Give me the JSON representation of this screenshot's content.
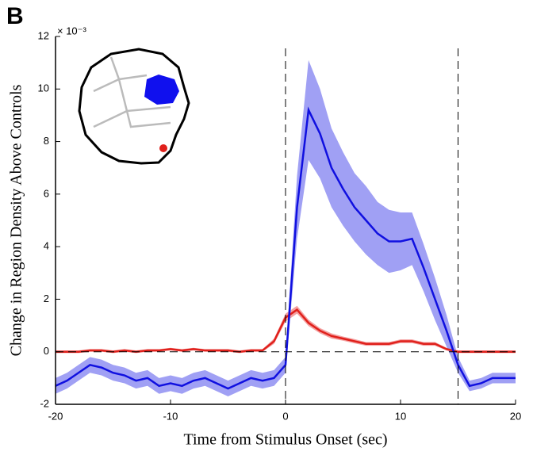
{
  "chart_data": {
    "type": "line",
    "panel_label": "B",
    "exponent_label": "× 10⁻³",
    "xlabel": "Time from Stimulus Onset (sec)",
    "ylabel": "Change in Region Density Above Controls",
    "x": [
      -20,
      -19,
      -18,
      -17,
      -16,
      -15,
      -14,
      -13,
      -12,
      -11,
      -10,
      -9,
      -8,
      -7,
      -6,
      -5,
      -4,
      -3,
      -2,
      -1,
      0,
      1,
      2,
      3,
      4,
      5,
      6,
      7,
      8,
      9,
      10,
      11,
      12,
      13,
      14,
      15,
      16,
      17,
      18,
      19,
      20
    ],
    "series": [
      {
        "color": "#e0201b",
        "band_color": "#f08080",
        "values": [
          0.0,
          0.0,
          0.0,
          0.05,
          0.05,
          0.0,
          0.05,
          0.0,
          0.05,
          0.05,
          0.1,
          0.05,
          0.1,
          0.05,
          0.05,
          0.05,
          0.0,
          0.05,
          0.05,
          0.4,
          1.3,
          1.6,
          1.1,
          0.8,
          0.6,
          0.5,
          0.4,
          0.3,
          0.3,
          0.3,
          0.4,
          0.4,
          0.3,
          0.3,
          0.1,
          0.0,
          0.0,
          0.0,
          0.0,
          0.0,
          0.0
        ],
        "errors": [
          0.05,
          0.05,
          0.05,
          0.05,
          0.05,
          0.05,
          0.05,
          0.05,
          0.05,
          0.05,
          0.05,
          0.05,
          0.05,
          0.05,
          0.05,
          0.05,
          0.05,
          0.05,
          0.05,
          0.1,
          0.15,
          0.15,
          0.12,
          0.1,
          0.1,
          0.08,
          0.08,
          0.07,
          0.07,
          0.07,
          0.07,
          0.07,
          0.07,
          0.07,
          0.05,
          0.05,
          0.05,
          0.05,
          0.05,
          0.05,
          0.05
        ]
      },
      {
        "color": "#1010e0",
        "band_color": "#8080f0",
        "values": [
          -1.3,
          -1.1,
          -0.8,
          -0.5,
          -0.6,
          -0.8,
          -0.9,
          -1.1,
          -1.0,
          -1.3,
          -1.2,
          -1.3,
          -1.1,
          -1.0,
          -1.2,
          -1.4,
          -1.2,
          -1.0,
          -1.1,
          -1.0,
          -0.5,
          5.5,
          9.2,
          8.3,
          7.0,
          6.2,
          5.5,
          5.0,
          4.5,
          4.2,
          4.2,
          4.3,
          3.2,
          2.0,
          0.8,
          -0.5,
          -1.3,
          -1.2,
          -1.0,
          -1.0,
          -1.0
        ],
        "errors": [
          0.3,
          0.3,
          0.3,
          0.3,
          0.3,
          0.3,
          0.3,
          0.3,
          0.3,
          0.3,
          0.3,
          0.3,
          0.3,
          0.3,
          0.3,
          0.3,
          0.3,
          0.3,
          0.3,
          0.3,
          0.3,
          1.2,
          1.9,
          1.7,
          1.5,
          1.4,
          1.3,
          1.3,
          1.2,
          1.2,
          1.1,
          1.0,
          0.9,
          0.8,
          0.6,
          0.3,
          0.2,
          0.2,
          0.2,
          0.2,
          0.2
        ]
      }
    ],
    "xlim": [
      -20,
      20
    ],
    "xticks": [
      -20,
      -10,
      0,
      10,
      20
    ],
    "ylim": [
      -2,
      12
    ],
    "yticks": [
      -2,
      0,
      2,
      4,
      6,
      8,
      10,
      12
    ],
    "vlines": [
      0,
      15
    ],
    "hline": 0
  }
}
